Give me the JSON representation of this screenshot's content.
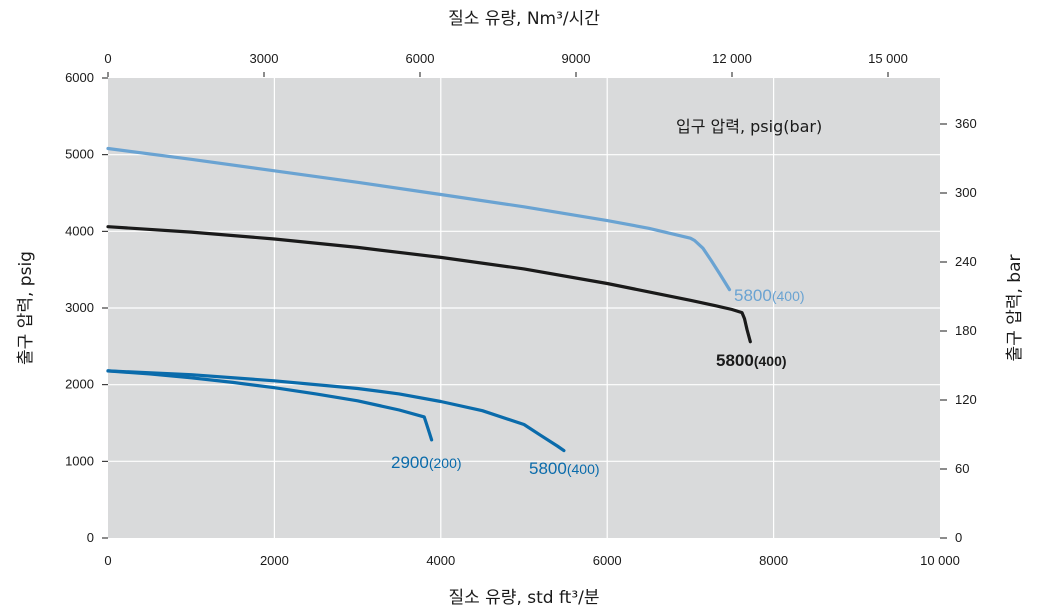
{
  "chart_data": {
    "type": "line",
    "title": "",
    "xlabel_bottom": "질소 유량, std ft³/분",
    "xlabel_top": "질소 유량, Nm³/시간",
    "ylabel_left": "출구 압력, psig",
    "ylabel_right": "출구 압력, bar",
    "legend_title": "입구 압력, psig(bar)",
    "x_bottom_ticks": [
      "0",
      "2000",
      "4000",
      "6000",
      "8000",
      "10 000"
    ],
    "x_top_ticks": [
      "0",
      "3000",
      "6000",
      "9000",
      "12 000",
      "15 000"
    ],
    "y_left_ticks": [
      "0",
      "1000",
      "2000",
      "3000",
      "4000",
      "5000",
      "6000"
    ],
    "y_right_ticks": [
      "0",
      "60",
      "120",
      "180",
      "240",
      "300",
      "360"
    ],
    "xlim": [
      0,
      10000
    ],
    "ylim": [
      0,
      6000
    ],
    "grid": true,
    "colors": {
      "plot_bg": "#d9dadb",
      "grid": "#ffffff",
      "light_blue": "#6aa3d2",
      "black": "#1a1a1a",
      "blue": "#0a6bab"
    },
    "series": [
      {
        "label_main": "5800",
        "label_sub": "(400)",
        "color": "#6aa3d2",
        "x": [
          0,
          1000,
          2000,
          3000,
          4000,
          5000,
          6000,
          6500,
          7000,
          7050,
          7150,
          7250,
          7350,
          7470
        ],
        "y": [
          5080,
          4940,
          4790,
          4640,
          4480,
          4320,
          4140,
          4040,
          3910,
          3880,
          3780,
          3620,
          3450,
          3240
        ]
      },
      {
        "label_main": "5800",
        "label_sub": "(400)",
        "color": "#1a1a1a",
        "x": [
          0,
          1000,
          2000,
          3000,
          4000,
          5000,
          6000,
          7000,
          7300,
          7500,
          7620,
          7650,
          7680,
          7720
        ],
        "y": [
          4060,
          3990,
          3900,
          3790,
          3660,
          3510,
          3320,
          3100,
          3030,
          2980,
          2940,
          2860,
          2720,
          2560
        ]
      },
      {
        "label_main": "2900",
        "label_sub": "(200)",
        "color": "#0a6bab",
        "x": [
          0,
          500,
          1000,
          1500,
          2000,
          2500,
          3000,
          3500,
          3800,
          3830,
          3860,
          3890
        ],
        "y": [
          2180,
          2140,
          2090,
          2030,
          1960,
          1880,
          1790,
          1670,
          1580,
          1480,
          1380,
          1280
        ]
      },
      {
        "label_main": "5800",
        "label_sub": "(400)",
        "color": "#0a6bab",
        "x": [
          0,
          1000,
          2000,
          3000,
          3500,
          4000,
          4500,
          5000,
          5200,
          5400,
          5480
        ],
        "y": [
          2180,
          2130,
          2050,
          1950,
          1880,
          1780,
          1660,
          1480,
          1340,
          1200,
          1140
        ]
      }
    ]
  }
}
